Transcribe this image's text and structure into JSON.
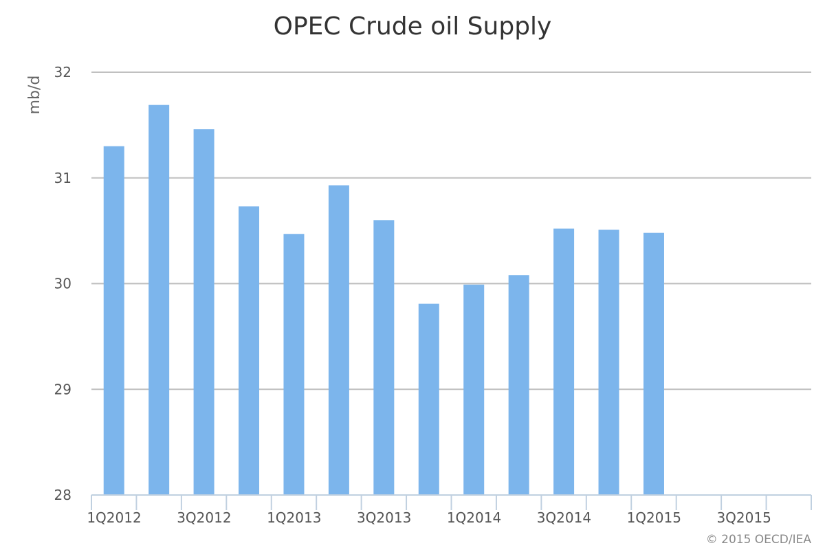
{
  "chart_data": {
    "type": "bar",
    "title": "OPEC Crude oil Supply",
    "ylabel": "mb/d",
    "xlabel": "",
    "ylim": [
      28,
      32
    ],
    "yticks": [
      28,
      29,
      30,
      31,
      32
    ],
    "categories": [
      "1Q2012",
      "2Q2012",
      "3Q2012",
      "4Q2012",
      "1Q2013",
      "2Q2013",
      "3Q2013",
      "4Q2013",
      "1Q2014",
      "2Q2014",
      "3Q2014",
      "4Q2014",
      "1Q2015",
      "2Q2015",
      "3Q2015",
      "4Q2015"
    ],
    "x_tick_labels": [
      "1Q2012",
      "",
      "3Q2012",
      "",
      "1Q2013",
      "",
      "3Q2013",
      "",
      "1Q2014",
      "",
      "3Q2014",
      "",
      "1Q2015",
      "",
      "3Q2015",
      ""
    ],
    "values": [
      31.3,
      31.69,
      31.46,
      30.73,
      30.47,
      30.93,
      30.6,
      29.81,
      29.99,
      30.08,
      30.52,
      30.51,
      30.48,
      null,
      null,
      null
    ],
    "bar_color": "#7cb5ec",
    "grid": true,
    "legend": "none",
    "credit": "© 2015 OECD/IEA"
  }
}
